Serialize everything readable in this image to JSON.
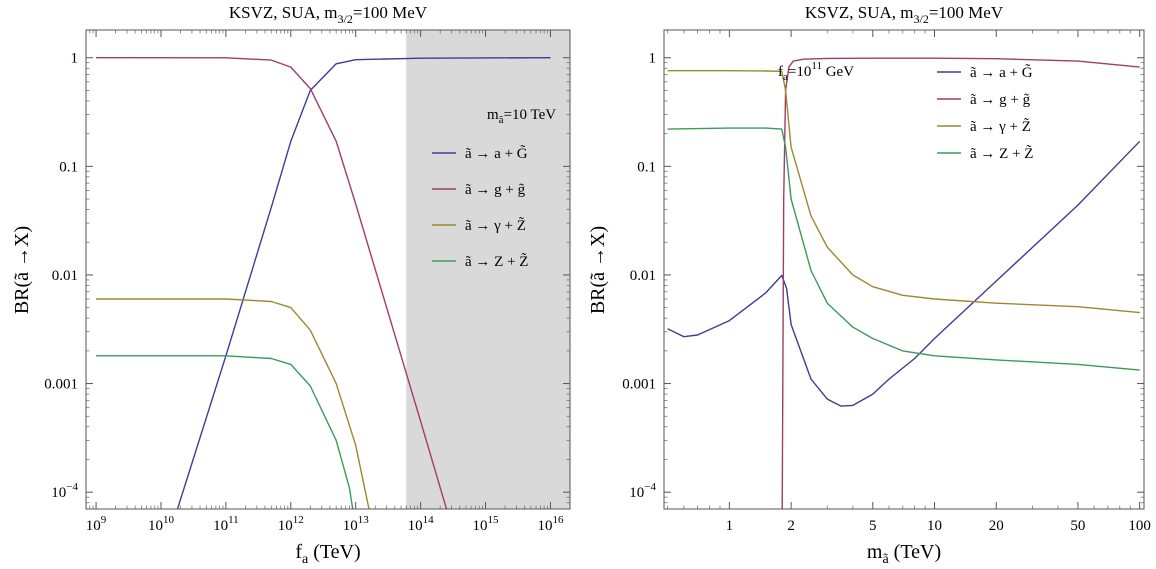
{
  "chart_data": [
    {
      "type": "line",
      "title": "KSVZ, SUA, m",
      "title_sub": "3/2",
      "title_tail": "=100 MeV",
      "xlabel": "f",
      "xlabel_sub": "a",
      "xlabel_tail": " (TeV)",
      "ylabel": "BR(ã →X)",
      "x_scale": "log",
      "y_scale": "log",
      "xlim": [
        700000000.0,
        2e+16
      ],
      "ylim": [
        7e-05,
        1.8
      ],
      "x_ticks": [
        {
          "v": 1000000000.0,
          "b": "10",
          "e": "9"
        },
        {
          "v": 10000000000.0,
          "b": "10",
          "e": "10"
        },
        {
          "v": 100000000000.0,
          "b": "10",
          "e": "11"
        },
        {
          "v": 1000000000000.0,
          "b": "10",
          "e": "12"
        },
        {
          "v": 10000000000000.0,
          "b": "10",
          "e": "13"
        },
        {
          "v": 100000000000000.0,
          "b": "10",
          "e": "14"
        },
        {
          "v": 1000000000000000.0,
          "b": "10",
          "e": "15"
        },
        {
          "v": 1e+16,
          "b": "10",
          "e": "16"
        }
      ],
      "y_ticks": [
        {
          "v": 1,
          "b": "1",
          "e": ""
        },
        {
          "v": 0.1,
          "b": "0.1",
          "e": ""
        },
        {
          "v": 0.01,
          "b": "0.01",
          "e": ""
        },
        {
          "v": 0.001,
          "b": "0.001",
          "e": ""
        },
        {
          "v": 0.0001,
          "b": "10",
          "e": "−4"
        }
      ],
      "shaded_region_x": [
        60000000000000.0,
        2e+16
      ],
      "shaded_color": "#d9d9d9",
      "annotation": {
        "text": "m",
        "sub": "ã",
        "tail": "=10 TeV"
      },
      "legend_position": "right",
      "series": [
        {
          "name": "ã → a + G̃",
          "color": "#3d3d96",
          "x": [
            18000000000.0,
            100000000000.0,
            500000000000.0,
            1000000000000.0,
            2000000000000.0,
            5000000000000.0,
            10000000000000.0,
            100000000000000.0,
            1e+16
          ],
          "y": [
            7e-05,
            0.0018,
            0.042,
            0.17,
            0.5,
            0.88,
            0.96,
            0.99,
            1.0
          ]
        },
        {
          "name": "ã → g + g̃",
          "color": "#a03c6e",
          "x": [
            1000000000.0,
            100000000000.0,
            500000000000.0,
            1000000000000.0,
            2000000000000.0,
            5000000000000.0,
            10000000000000.0,
            100000000000000.0,
            250000000000000.0
          ],
          "y": [
            1.0,
            0.998,
            0.95,
            0.82,
            0.52,
            0.17,
            0.045,
            0.00045,
            7e-05
          ]
        },
        {
          "name": "ã → γ + Z̃",
          "color": "#9a8a2c",
          "x": [
            1000000000.0,
            100000000000.0,
            500000000000.0,
            1000000000000.0,
            2000000000000.0,
            5000000000000.0,
            10000000000000.0,
            16000000000000.0
          ],
          "y": [
            0.006,
            0.006,
            0.0057,
            0.005,
            0.0031,
            0.001,
            0.00027,
            7e-05
          ]
        },
        {
          "name": "ã → Z + Z̃",
          "color": "#3c9a5a",
          "x": [
            1000000000.0,
            100000000000.0,
            500000000000.0,
            1000000000000.0,
            2000000000000.0,
            5000000000000.0,
            8000000000000.0,
            9000000000000.0
          ],
          "y": [
            0.0018,
            0.0018,
            0.0017,
            0.0015,
            0.00095,
            0.0003,
            0.00011,
            7e-05
          ]
        }
      ]
    },
    {
      "type": "line",
      "title": "KSVZ, SUA, m",
      "title_sub": "3/2",
      "title_tail": "=100 MeV",
      "xlabel": "m",
      "xlabel_sub": "ã",
      "xlabel_tail": "  (TeV)",
      "ylabel": "BR(ã →X)",
      "x_scale": "log",
      "y_scale": "log",
      "xlim": [
        0.48,
        105
      ],
      "ylim": [
        7e-05,
        1.8
      ],
      "x_ticks": [
        {
          "v": 1,
          "b": "1",
          "e": ""
        },
        {
          "v": 2,
          "b": "2",
          "e": ""
        },
        {
          "v": 5,
          "b": "5",
          "e": ""
        },
        {
          "v": 10,
          "b": "10",
          "e": ""
        },
        {
          "v": 20,
          "b": "20",
          "e": ""
        },
        {
          "v": 50,
          "b": "50",
          "e": ""
        },
        {
          "v": 100,
          "b": "100",
          "e": ""
        }
      ],
      "y_ticks": [
        {
          "v": 1,
          "b": "1",
          "e": ""
        },
        {
          "v": 0.1,
          "b": "0.1",
          "e": ""
        },
        {
          "v": 0.01,
          "b": "0.01",
          "e": ""
        },
        {
          "v": 0.001,
          "b": "0.001",
          "e": ""
        },
        {
          "v": 0.0001,
          "b": "10",
          "e": "−4"
        }
      ],
      "annotation": {
        "text": "f",
        "sub": "a",
        "tail": "=10",
        "sup": "11",
        "tail2": " GeV"
      },
      "legend_position": "top-right",
      "series": [
        {
          "name": "ã → a + G̃",
          "color": "#3d3d96",
          "x": [
            0.5,
            0.6,
            0.7,
            1.0,
            1.5,
            1.8,
            1.9,
            2.0,
            2.5,
            3.0,
            3.5,
            4.0,
            5.0,
            6.0,
            8.0,
            10,
            20,
            50,
            100
          ],
          "y": [
            0.0032,
            0.0027,
            0.0028,
            0.0038,
            0.0068,
            0.0099,
            0.0075,
            0.0035,
            0.0011,
            0.00072,
            0.00062,
            0.00063,
            0.0008,
            0.0011,
            0.0017,
            0.0026,
            0.0088,
            0.044,
            0.17
          ]
        },
        {
          "name": "ã → g + g̃",
          "color": "#a03c6e",
          "x": [
            1.81,
            1.84,
            1.88,
            1.95,
            2.05,
            2.3,
            3,
            5,
            10,
            20,
            50,
            100
          ],
          "y": [
            7e-05,
            0.05,
            0.5,
            0.82,
            0.93,
            0.97,
            0.985,
            0.99,
            0.99,
            0.98,
            0.93,
            0.82
          ]
        },
        {
          "name": "ã → γ + Z̃",
          "color": "#9a8a2c",
          "x": [
            0.5,
            1.0,
            1.5,
            1.8,
            1.88,
            2.0,
            2.5,
            3,
            4,
            5,
            7,
            10,
            20,
            50,
            100
          ],
          "y": [
            0.76,
            0.76,
            0.755,
            0.75,
            0.5,
            0.15,
            0.035,
            0.018,
            0.01,
            0.0078,
            0.0065,
            0.006,
            0.0055,
            0.0051,
            0.0045
          ]
        },
        {
          "name": "ã → Z + Z̃",
          "color": "#3c9a5a",
          "x": [
            0.5,
            1.0,
            1.5,
            1.8,
            1.88,
            2.0,
            2.5,
            3,
            4,
            5,
            7,
            10,
            20,
            50,
            100
          ],
          "y": [
            0.22,
            0.225,
            0.225,
            0.22,
            0.15,
            0.05,
            0.011,
            0.0055,
            0.0033,
            0.0026,
            0.002,
            0.0018,
            0.00165,
            0.0015,
            0.00133
          ]
        }
      ]
    }
  ]
}
